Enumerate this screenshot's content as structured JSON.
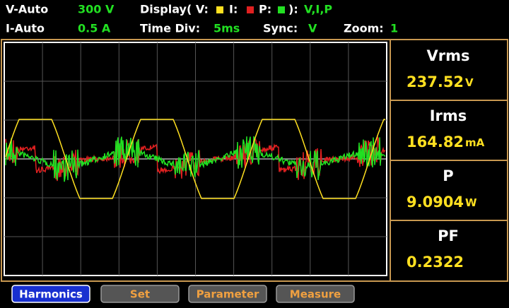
{
  "header": {
    "row1": {
      "v_mode": "V-Auto",
      "v_range": "300 V",
      "display_label": "Display( V:",
      "i_label": "I:",
      "p_label": "P:",
      "display_close": "):",
      "display_value": "V,I,P"
    },
    "row2": {
      "i_mode": "I-Auto",
      "i_range": "0.5 A",
      "time_div_label": "Time Div:",
      "time_div": "5ms",
      "sync_label": "Sync:",
      "sync": "V",
      "zoom_label": "Zoom:",
      "zoom": "1"
    }
  },
  "readings": [
    {
      "label": "Vrms",
      "value": "237.52",
      "unit": "V"
    },
    {
      "label": "Irms",
      "value": "164.82",
      "unit": "mA"
    },
    {
      "label": "P",
      "value": "9.0904",
      "unit": "W"
    },
    {
      "label": "PF",
      "value": "0.2322"
    }
  ],
  "buttons": [
    "Harmonics",
    "Set",
    "Parameter",
    "Measure"
  ]
}
